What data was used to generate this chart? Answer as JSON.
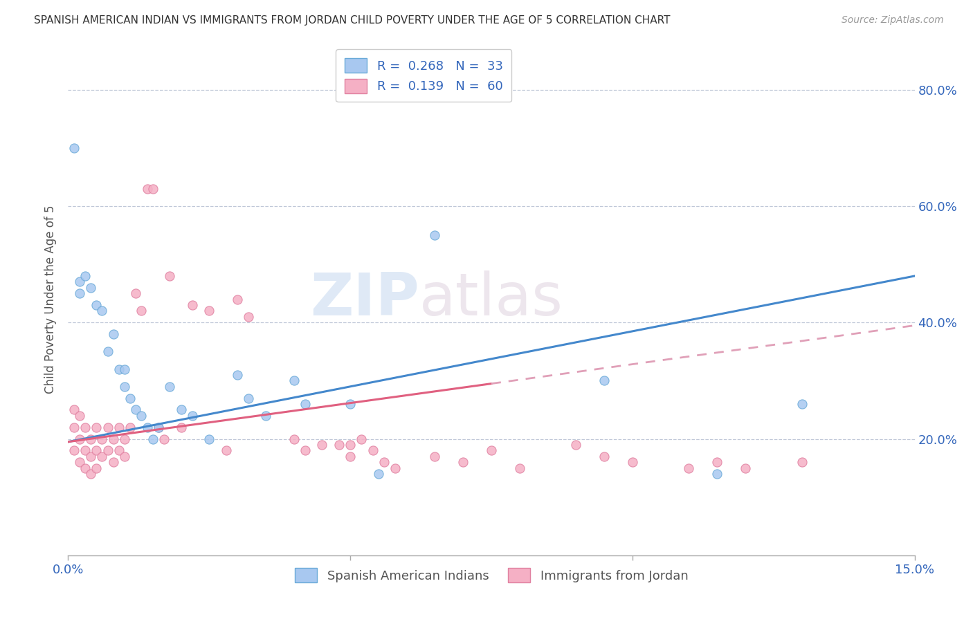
{
  "title": "SPANISH AMERICAN INDIAN VS IMMIGRANTS FROM JORDAN CHILD POVERTY UNDER THE AGE OF 5 CORRELATION CHART",
  "source": "Source: ZipAtlas.com",
  "ylabel": "Child Poverty Under the Age of 5",
  "xlim": [
    0.0,
    0.15
  ],
  "ylim": [
    0.0,
    0.88
  ],
  "ytick_labels": [
    "20.0%",
    "40.0%",
    "60.0%",
    "80.0%"
  ],
  "yticks": [
    0.2,
    0.4,
    0.6,
    0.8
  ],
  "watermark_zip": "ZIP",
  "watermark_atlas": "atlas",
  "series1_color": "#a8c8f0",
  "series1_edge": "#6aaad8",
  "series2_color": "#f5b0c5",
  "series2_edge": "#e080a0",
  "line1_color": "#4488cc",
  "line2_color": "#e06080",
  "line2_color_dash": "#e0a0b8",
  "legend_R1": "0.268",
  "legend_N1": "33",
  "legend_R2": "0.139",
  "legend_N2": "60",
  "legend_label1": "Spanish American Indians",
  "legend_label2": "Immigrants from Jordan",
  "series1_x": [
    0.001,
    0.002,
    0.002,
    0.003,
    0.004,
    0.005,
    0.006,
    0.007,
    0.008,
    0.009,
    0.01,
    0.01,
    0.011,
    0.012,
    0.013,
    0.014,
    0.015,
    0.016,
    0.018,
    0.02,
    0.022,
    0.025,
    0.03,
    0.032,
    0.035,
    0.04,
    0.042,
    0.05,
    0.055,
    0.065,
    0.095,
    0.115,
    0.13
  ],
  "series1_y": [
    0.7,
    0.47,
    0.45,
    0.48,
    0.46,
    0.43,
    0.42,
    0.35,
    0.38,
    0.32,
    0.29,
    0.32,
    0.27,
    0.25,
    0.24,
    0.22,
    0.2,
    0.22,
    0.29,
    0.25,
    0.24,
    0.2,
    0.31,
    0.27,
    0.24,
    0.3,
    0.26,
    0.26,
    0.14,
    0.55,
    0.3,
    0.14,
    0.26
  ],
  "series2_x": [
    0.001,
    0.001,
    0.001,
    0.002,
    0.002,
    0.002,
    0.003,
    0.003,
    0.003,
    0.004,
    0.004,
    0.004,
    0.005,
    0.005,
    0.005,
    0.006,
    0.006,
    0.007,
    0.007,
    0.008,
    0.008,
    0.009,
    0.009,
    0.01,
    0.01,
    0.011,
    0.012,
    0.013,
    0.014,
    0.015,
    0.016,
    0.017,
    0.018,
    0.02,
    0.022,
    0.025,
    0.028,
    0.03,
    0.032,
    0.04,
    0.042,
    0.045,
    0.05,
    0.065,
    0.07,
    0.075,
    0.08,
    0.09,
    0.095,
    0.1,
    0.11,
    0.115,
    0.12,
    0.13,
    0.048,
    0.05,
    0.052,
    0.054,
    0.056,
    0.058
  ],
  "series2_y": [
    0.25,
    0.22,
    0.18,
    0.24,
    0.2,
    0.16,
    0.22,
    0.18,
    0.15,
    0.2,
    0.17,
    0.14,
    0.22,
    0.18,
    0.15,
    0.2,
    0.17,
    0.22,
    0.18,
    0.2,
    0.16,
    0.22,
    0.18,
    0.2,
    0.17,
    0.22,
    0.45,
    0.42,
    0.63,
    0.63,
    0.22,
    0.2,
    0.48,
    0.22,
    0.43,
    0.42,
    0.18,
    0.44,
    0.41,
    0.2,
    0.18,
    0.19,
    0.19,
    0.17,
    0.16,
    0.18,
    0.15,
    0.19,
    0.17,
    0.16,
    0.15,
    0.16,
    0.15,
    0.16,
    0.19,
    0.17,
    0.2,
    0.18,
    0.16,
    0.15
  ],
  "line1_x0": 0.0,
  "line1_y0": 0.195,
  "line1_x1": 0.15,
  "line1_y1": 0.48,
  "line2_x0": 0.0,
  "line2_y0": 0.195,
  "line2_x1": 0.075,
  "line2_y1": 0.295,
  "line2_dash_x0": 0.075,
  "line2_dash_y0": 0.295,
  "line2_dash_x1": 0.15,
  "line2_dash_y1": 0.395
}
